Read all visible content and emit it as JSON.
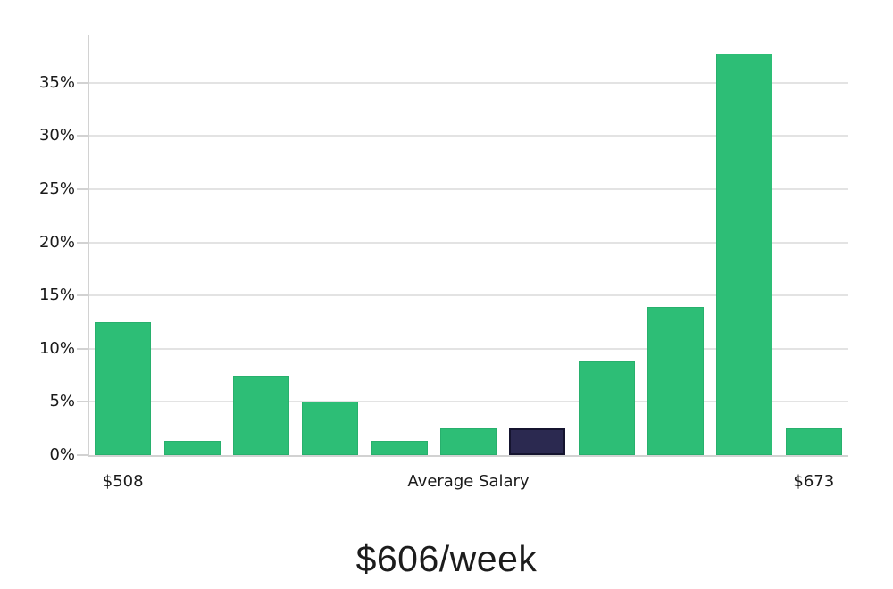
{
  "chart_data": {
    "type": "bar",
    "title": "$606/week",
    "values": [
      12.5,
      1.3,
      7.5,
      5.0,
      1.3,
      2.5,
      2.5,
      8.8,
      13.9,
      37.7,
      2.5
    ],
    "highlight_index": 6,
    "bar_color": "#2dbe76",
    "bar_border_color": "#28b06d",
    "highlight_color": "#2b2950",
    "highlight_border_color": "#15142f",
    "gridline_color": "#e3e3e3",
    "axis_line_color": "#d2d2d2",
    "tick_label_color": "#1a1a1a",
    "ylim": [
      0,
      39.5
    ],
    "yticks": [
      {
        "value": 0,
        "label": "0%"
      },
      {
        "value": 5,
        "label": "5%"
      },
      {
        "value": 10,
        "label": "10%"
      },
      {
        "value": 15,
        "label": "15%"
      },
      {
        "value": 20,
        "label": "20%"
      },
      {
        "value": 25,
        "label": "25%"
      },
      {
        "value": 30,
        "label": "30%"
      },
      {
        "value": 35,
        "label": "35%"
      }
    ],
    "xtick_labels": [
      {
        "index": 0,
        "label": "$508"
      },
      {
        "index": 5,
        "label": "Average Salary"
      },
      {
        "index": 10,
        "label": "$673"
      }
    ],
    "grid": true,
    "legend": false
  }
}
